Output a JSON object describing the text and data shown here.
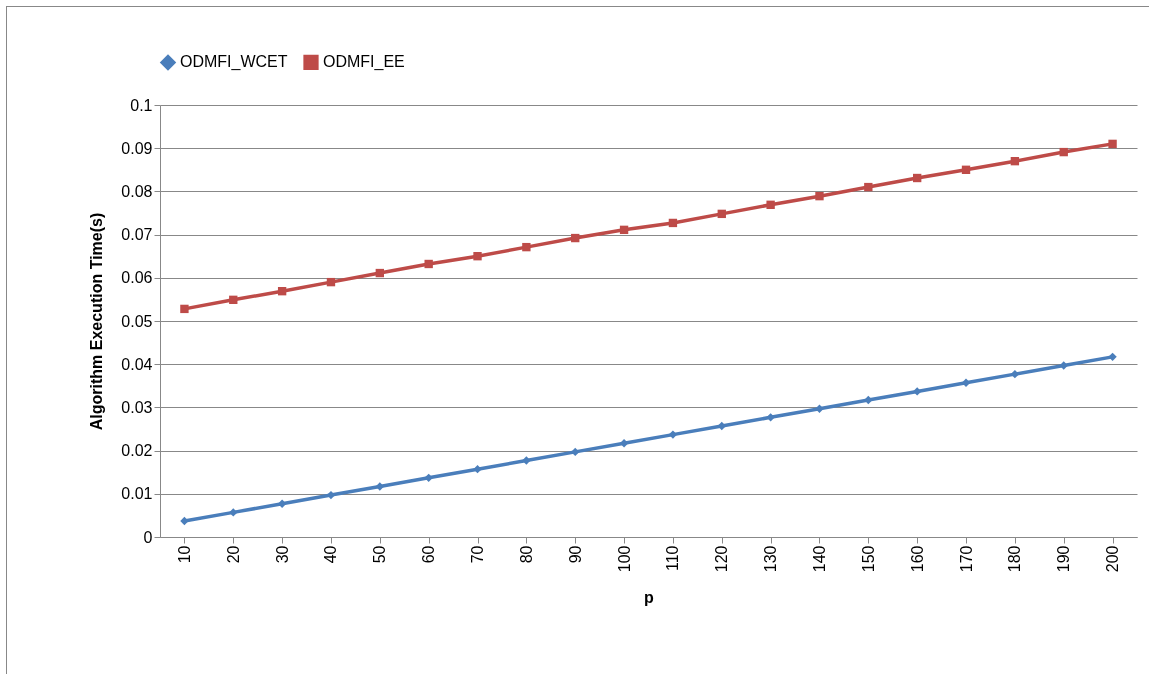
{
  "chart_data": {
    "type": "line",
    "xlabel": "p",
    "ylabel": "Algorithm Execution Time(s)",
    "categories": [
      "10",
      "20",
      "30",
      "40",
      "50",
      "60",
      "70",
      "80",
      "90",
      "100",
      "110",
      "120",
      "130",
      "140",
      "150",
      "160",
      "170",
      "180",
      "190",
      "200"
    ],
    "series": [
      {
        "name": "ODMFI_WCET",
        "color": "#4a7ebb",
        "marker": "diamond",
        "values": [
          0.0037,
          0.0057,
          0.0077,
          0.0097,
          0.0117,
          0.0137,
          0.0157,
          0.0177,
          0.0197,
          0.0217,
          0.0237,
          0.0257,
          0.0277,
          0.0297,
          0.0317,
          0.0337,
          0.0357,
          0.0377,
          0.0397,
          0.0417
        ]
      },
      {
        "name": "ODMFI_EE",
        "color": "#be4b48",
        "marker": "square",
        "values": [
          0.0528,
          0.0549,
          0.0569,
          0.059,
          0.0611,
          0.0632,
          0.065,
          0.0671,
          0.0692,
          0.0711,
          0.0727,
          0.0748,
          0.0769,
          0.0789,
          0.081,
          0.0831,
          0.085,
          0.087,
          0.0891,
          0.091
        ]
      }
    ],
    "ylim": [
      0,
      0.1
    ],
    "yticks": [
      0,
      0.01,
      0.02,
      0.03,
      0.04,
      0.05,
      0.06,
      0.07,
      0.08,
      0.09,
      0.1
    ],
    "grid": "y",
    "legend": "top"
  }
}
